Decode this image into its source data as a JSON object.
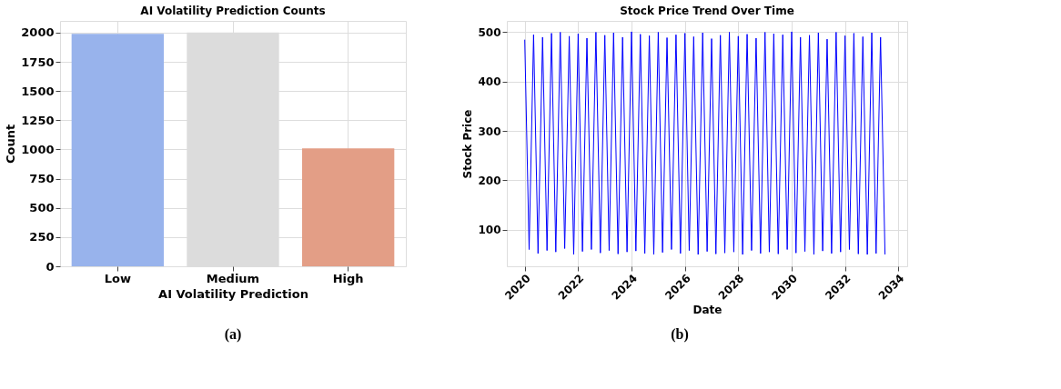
{
  "chart_data": [
    {
      "type": "bar",
      "title": "AI Volatility Prediction Counts",
      "xlabel": "AI Volatility Prediction",
      "ylabel": "Count",
      "categories": [
        "Low",
        "Medium",
        "High"
      ],
      "values": [
        1990,
        2000,
        1010
      ],
      "colors": [
        "#98b3ec",
        "#dcdcdc",
        "#e39e86"
      ],
      "ylim": [
        0,
        2100
      ],
      "yticks": [
        0,
        250,
        500,
        750,
        1000,
        1250,
        1500,
        1750,
        2000
      ],
      "grid": true,
      "annotations": [
        "(a)"
      ]
    },
    {
      "type": "line",
      "title": "Stock Price Trend Over Time",
      "xlabel": "Date",
      "ylabel": "Stock Price",
      "x": [
        "2020-01",
        "2020-03",
        "2020-05",
        "2020-07",
        "2020-09",
        "2020-11",
        "2021-01",
        "2021-03",
        "2021-05",
        "2021-07",
        "2021-09",
        "2021-11",
        "2022-01",
        "2022-03",
        "2022-05",
        "2022-07",
        "2022-09",
        "2022-11",
        "2023-01",
        "2023-03",
        "2023-05",
        "2023-07",
        "2023-09",
        "2023-11",
        "2024-01",
        "2024-03",
        "2024-05",
        "2024-07",
        "2024-09",
        "2024-11",
        "2025-01",
        "2025-03",
        "2025-05",
        "2025-07",
        "2025-09",
        "2025-11",
        "2026-01",
        "2026-03",
        "2026-05",
        "2026-07",
        "2026-09",
        "2026-11",
        "2027-01",
        "2027-03",
        "2027-05",
        "2027-07",
        "2027-09",
        "2027-11",
        "2028-01",
        "2028-03",
        "2028-05",
        "2028-07",
        "2028-09",
        "2028-11",
        "2029-01",
        "2029-03",
        "2029-05",
        "2029-07",
        "2029-09",
        "2029-11",
        "2030-01",
        "2030-03",
        "2030-05",
        "2030-07",
        "2030-09",
        "2030-11",
        "2031-01",
        "2031-03",
        "2031-05",
        "2031-07",
        "2031-09",
        "2031-11",
        "2032-01",
        "2032-03",
        "2032-05",
        "2032-07",
        "2032-09",
        "2032-11",
        "2033-01",
        "2033-03",
        "2033-05",
        "2033-07"
      ],
      "series": [
        {
          "color": "#0000ff",
          "values": [
            485,
            60,
            495,
            52,
            490,
            58,
            498,
            55,
            500,
            62,
            492,
            50,
            497,
            56,
            488,
            60,
            500,
            53,
            494,
            58,
            499,
            51,
            490,
            55,
            501,
            57,
            496,
            52,
            493,
            50,
            500,
            54,
            489,
            60,
            495,
            52,
            498,
            58,
            491,
            50,
            499,
            56,
            487,
            51,
            494,
            53,
            500,
            55,
            492,
            50,
            496,
            58,
            488,
            52,
            500,
            55,
            497,
            51,
            495,
            60,
            501,
            53,
            490,
            56,
            494,
            50,
            499,
            57,
            486,
            52,
            500,
            55,
            493,
            60,
            498,
            51,
            491,
            50,
            499,
            52,
            490,
            50
          ]
        }
      ],
      "xlim": [
        "2019-05",
        "2034-05"
      ],
      "xticks": [
        "2020",
        "2022",
        "2024",
        "2026",
        "2028",
        "2030",
        "2032",
        "2034"
      ],
      "ylim": [
        26,
        523
      ],
      "yticks": [
        100,
        200,
        300,
        400,
        500
      ],
      "grid": true,
      "line_style": "solid",
      "annotations": [
        "(b)"
      ]
    }
  ]
}
